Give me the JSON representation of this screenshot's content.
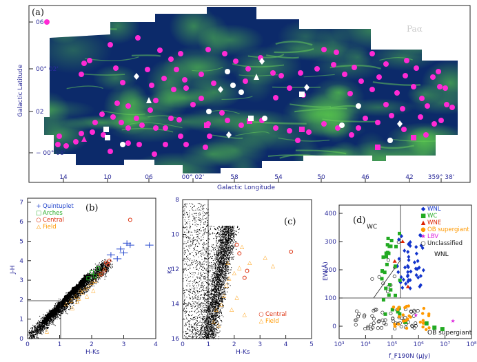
{
  "panel_a": {
    "label": "(a)",
    "band": "Paα",
    "xlabel": "Galactic Longitude",
    "ylabel": "Galactic Latitude",
    "x_ticks": [
      "14",
      "10",
      "06",
      "00° 02'",
      "58",
      "54",
      "50",
      "46",
      "42",
      "359° 38'"
    ],
    "y_ticks": [
      "06",
      "00° 02'",
      "02",
      "− 00° 08'"
    ]
  },
  "panel_b": {
    "label": "(b)",
    "xlabel": "H-Ks",
    "ylabel": "J-H",
    "x_ticks": [
      "0",
      "1",
      "2",
      "3",
      "4"
    ],
    "y_ticks": [
      "0",
      "1",
      "2",
      "3",
      "4",
      "5",
      "6",
      "7"
    ],
    "legend": [
      {
        "symbol": "+",
        "label": "Quintuplet",
        "color": "#2244cc"
      },
      {
        "symbol": "□",
        "label": "Arches",
        "color": "#22aa22"
      },
      {
        "symbol": "○",
        "label": "Central",
        "color": "#dd3311"
      },
      {
        "symbol": "△",
        "label": "Field",
        "color": "#ff9900"
      }
    ]
  },
  "panel_c": {
    "label": "(c)",
    "xlabel": "H-Ks",
    "ylabel": "Ks",
    "x_ticks": [
      "0",
      "1",
      "2",
      "3",
      "4",
      "5"
    ],
    "y_ticks": [
      "8",
      "10",
      "12",
      "14",
      "16"
    ],
    "legend": [
      {
        "symbol": "○",
        "label": "Central",
        "color": "#dd3311"
      },
      {
        "symbol": "△",
        "label": "Field",
        "color": "#ff9900"
      }
    ]
  },
  "panel_d": {
    "label": "(d)",
    "xlabel": "f_F190N (μJy)",
    "ylabel": "EW(Å)",
    "x_ticks": [
      "10³",
      "10⁴",
      "10⁵",
      "10⁶",
      "10⁷",
      "10⁸"
    ],
    "y_ticks": [
      "0",
      "100",
      "200",
      "300",
      "400"
    ],
    "region_labels": {
      "wc": "WC",
      "wnl": "WNL",
      "ob": "OB supergiant"
    },
    "legend": [
      {
        "symbol": "◆",
        "label": "WNL",
        "color": "#1133cc"
      },
      {
        "symbol": "■",
        "label": "WC",
        "color": "#22aa22"
      },
      {
        "symbol": "▲",
        "label": "WNE",
        "color": "#dd2200"
      },
      {
        "symbol": "●",
        "label": "OB supergiant",
        "color": "#ff9900"
      },
      {
        "symbol": "★",
        "label": "LBV",
        "color": "#dd22dd"
      },
      {
        "symbol": "○",
        "label": "Unclassified",
        "color": "#222222"
      }
    ]
  },
  "colors": {
    "map_bg": "#0c2a6a",
    "gas": "#2a9a3a",
    "magenta": "#ff2ad4",
    "frame": "#222222",
    "tick_blue": "#2a2a9a"
  }
}
